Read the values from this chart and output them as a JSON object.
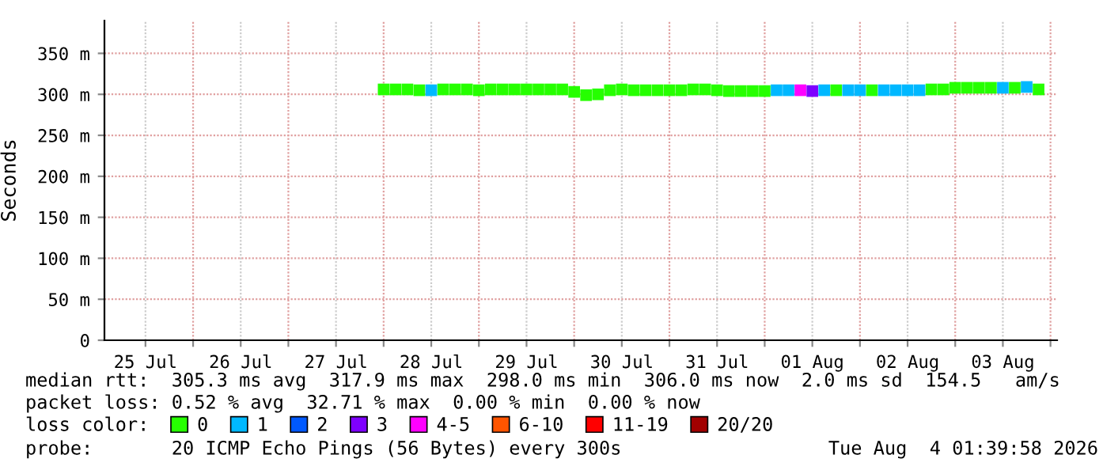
{
  "chart_data": {
    "type": "scatter",
    "marker": "square",
    "ylabel": "Seconds",
    "legend_title": "loss color:",
    "x": [
      "2026-07-28T00:00",
      "2026-07-28T03:00",
      "2026-07-28T06:00",
      "2026-07-28T09:00",
      "2026-07-28T12:00",
      "2026-07-28T15:00",
      "2026-07-28T18:00",
      "2026-07-28T21:00",
      "2026-07-29T00:00",
      "2026-07-29T03:00",
      "2026-07-29T06:00",
      "2026-07-29T09:00",
      "2026-07-29T12:00",
      "2026-07-29T15:00",
      "2026-07-29T18:00",
      "2026-07-29T21:00",
      "2026-07-30T00:00",
      "2026-07-30T03:00",
      "2026-07-30T06:00",
      "2026-07-30T09:00",
      "2026-07-30T12:00",
      "2026-07-30T15:00",
      "2026-07-30T18:00",
      "2026-07-30T21:00",
      "2026-07-31T00:00",
      "2026-07-31T03:00",
      "2026-07-31T06:00",
      "2026-07-31T09:00",
      "2026-07-31T12:00",
      "2026-07-31T15:00",
      "2026-07-31T18:00",
      "2026-07-31T21:00",
      "2026-08-01T00:00",
      "2026-08-01T03:00",
      "2026-08-01T06:00",
      "2026-08-01T09:00",
      "2026-08-01T12:00",
      "2026-08-01T15:00",
      "2026-08-01T18:00",
      "2026-08-01T21:00",
      "2026-08-02T00:00",
      "2026-08-02T03:00",
      "2026-08-02T06:00",
      "2026-08-02T09:00",
      "2026-08-02T12:00",
      "2026-08-02T15:00",
      "2026-08-02T18:00",
      "2026-08-02T21:00",
      "2026-08-03T00:00",
      "2026-08-03T03:00",
      "2026-08-03T06:00",
      "2026-08-03T09:00",
      "2026-08-03T12:00",
      "2026-08-03T15:00",
      "2026-08-03T18:00",
      "2026-08-03T21:00"
    ],
    "series": [
      {
        "name": "0",
        "color": "#26ff00",
        "values": [
          306,
          306,
          306,
          305,
          null,
          306,
          306,
          306,
          305,
          306,
          306,
          306,
          306,
          306,
          306,
          306,
          303,
          299,
          300,
          305,
          306,
          305,
          305,
          305,
          305,
          305,
          306,
          306,
          305,
          304,
          304,
          304,
          304,
          null,
          null,
          null,
          null,
          null,
          305,
          null,
          null,
          305,
          null,
          null,
          null,
          null,
          306,
          306,
          308,
          308,
          308,
          308,
          null,
          308,
          null,
          306
        ]
      },
      {
        "name": "1",
        "color": "#00b8ff",
        "values": [
          null,
          null,
          null,
          null,
          305,
          null,
          null,
          null,
          null,
          null,
          null,
          null,
          null,
          null,
          null,
          null,
          null,
          null,
          null,
          null,
          null,
          null,
          null,
          null,
          null,
          null,
          null,
          null,
          null,
          null,
          null,
          null,
          null,
          305,
          305,
          null,
          null,
          305,
          null,
          305,
          305,
          null,
          305,
          305,
          305,
          305,
          null,
          null,
          null,
          null,
          null,
          null,
          308,
          null,
          309,
          null
        ]
      },
      {
        "name": "2",
        "color": "#0059ff",
        "values": [
          null,
          null,
          null,
          null,
          null,
          null,
          null,
          null,
          null,
          null,
          null,
          null,
          null,
          null,
          null,
          null,
          null,
          null,
          null,
          null,
          null,
          null,
          null,
          null,
          null,
          null,
          null,
          null,
          null,
          null,
          null,
          null,
          null,
          null,
          null,
          null,
          null,
          null,
          null,
          null,
          null,
          null,
          null,
          null,
          null,
          null,
          null,
          null,
          null,
          null,
          null,
          null,
          null,
          null,
          null,
          null
        ]
      },
      {
        "name": "3",
        "color": "#7e00ff",
        "values": [
          null,
          null,
          null,
          null,
          null,
          null,
          null,
          null,
          null,
          null,
          null,
          null,
          null,
          null,
          null,
          null,
          null,
          null,
          null,
          null,
          null,
          null,
          null,
          null,
          null,
          null,
          null,
          null,
          null,
          null,
          null,
          null,
          null,
          null,
          null,
          null,
          304,
          null,
          null,
          null,
          null,
          null,
          null,
          null,
          null,
          null,
          null,
          null,
          null,
          null,
          null,
          null,
          null,
          null,
          null,
          null
        ]
      },
      {
        "name": "4-5",
        "color": "#ff00ff",
        "values": [
          null,
          null,
          null,
          null,
          null,
          null,
          null,
          null,
          null,
          null,
          null,
          null,
          null,
          null,
          null,
          null,
          null,
          null,
          null,
          null,
          null,
          null,
          null,
          null,
          null,
          null,
          null,
          null,
          null,
          null,
          null,
          null,
          null,
          null,
          null,
          305,
          null,
          null,
          null,
          null,
          null,
          null,
          null,
          null,
          null,
          null,
          null,
          null,
          null,
          null,
          null,
          null,
          null,
          null,
          null,
          null
        ]
      },
      {
        "name": "6-10",
        "color": "#ff5500",
        "values": [
          null,
          null,
          null,
          null,
          null,
          null,
          null,
          null,
          null,
          null,
          null,
          null,
          null,
          null,
          null,
          null,
          null,
          null,
          null,
          null,
          null,
          null,
          null,
          null,
          null,
          null,
          null,
          null,
          null,
          null,
          null,
          null,
          null,
          null,
          null,
          null,
          null,
          null,
          null,
          null,
          null,
          null,
          null,
          null,
          null,
          null,
          null,
          null,
          null,
          null,
          null,
          null,
          null,
          null,
          null,
          null
        ]
      },
      {
        "name": "11-19",
        "color": "#ff0000",
        "values": [
          null,
          null,
          null,
          null,
          null,
          null,
          null,
          null,
          null,
          null,
          null,
          null,
          null,
          null,
          null,
          null,
          null,
          null,
          null,
          null,
          null,
          null,
          null,
          null,
          null,
          null,
          null,
          null,
          null,
          null,
          null,
          null,
          null,
          null,
          null,
          null,
          null,
          null,
          null,
          null,
          null,
          null,
          null,
          null,
          null,
          null,
          null,
          null,
          null,
          null,
          null,
          null,
          null,
          null,
          null,
          null
        ]
      },
      {
        "name": "20/20",
        "color": "#a10000",
        "values": [
          null,
          null,
          null,
          null,
          null,
          null,
          null,
          null,
          null,
          null,
          null,
          null,
          null,
          null,
          null,
          null,
          null,
          null,
          null,
          null,
          null,
          null,
          null,
          null,
          null,
          null,
          null,
          null,
          null,
          null,
          null,
          null,
          null,
          null,
          null,
          null,
          null,
          null,
          null,
          null,
          null,
          null,
          null,
          null,
          null,
          null,
          null,
          null,
          null,
          null,
          null,
          null,
          null,
          null,
          null,
          null
        ]
      }
    ],
    "xlim": [
      "2026-07-25T01:40",
      "2026-08-04T01:40"
    ],
    "xticks": [
      {
        "value": "2026-07-25T12:00",
        "label": "25 Jul"
      },
      {
        "value": "2026-07-26T12:00",
        "label": "26 Jul"
      },
      {
        "value": "2026-07-27T12:00",
        "label": "27 Jul"
      },
      {
        "value": "2026-07-28T12:00",
        "label": "28 Jul"
      },
      {
        "value": "2026-07-29T12:00",
        "label": "29 Jul"
      },
      {
        "value": "2026-07-30T12:00",
        "label": "30 Jul"
      },
      {
        "value": "2026-07-31T12:00",
        "label": "31 Jul"
      },
      {
        "value": "2026-08-01T12:00",
        "label": "01 Aug"
      },
      {
        "value": "2026-08-02T12:00",
        "label": "02 Aug"
      },
      {
        "value": "2026-08-03T12:00",
        "label": "03 Aug"
      },
      {
        "value": "2026-07-26T00:00",
        "label": null
      },
      {
        "value": "2026-07-27T00:00",
        "label": null
      },
      {
        "value": "2026-07-28T00:00",
        "label": null
      },
      {
        "value": "2026-07-29T00:00",
        "label": null
      },
      {
        "value": "2026-07-30T00:00",
        "label": null
      },
      {
        "value": "2026-07-31T00:00",
        "label": null
      },
      {
        "value": "2026-08-01T00:00",
        "label": null
      },
      {
        "value": "2026-08-02T00:00",
        "label": null
      },
      {
        "value": "2026-08-03T00:00",
        "label": null
      },
      {
        "value": "2026-08-04T00:00",
        "label": null
      }
    ],
    "ylim": [
      0,
      390
    ],
    "yticks": [
      0,
      {
        "value": 50,
        "label": "50 m"
      },
      {
        "value": 100,
        "label": "100 m"
      },
      {
        "value": 150,
        "label": "150 m"
      },
      {
        "value": 200,
        "label": "200 m"
      },
      {
        "value": 250,
        "label": "250 m"
      },
      {
        "value": 300,
        "label": "300 m"
      },
      {
        "value": 350,
        "label": "350 m"
      }
    ],
    "grid": true,
    "legend": "bottom",
    "annotations": [
      "median rtt:  305.3 ms avg  317.9 ms max  298.0 ms min  306.0 ms now  2.0 ms sd  154.5   am/s",
      "packet loss: 0.52 % avg  32.71 % max  0.00 % min  0.00 % now",
      "probe:       20 ICMP Echo Pings (56 Bytes) every 300s",
      "Tue Aug  4 01:39:58 2026"
    ]
  }
}
